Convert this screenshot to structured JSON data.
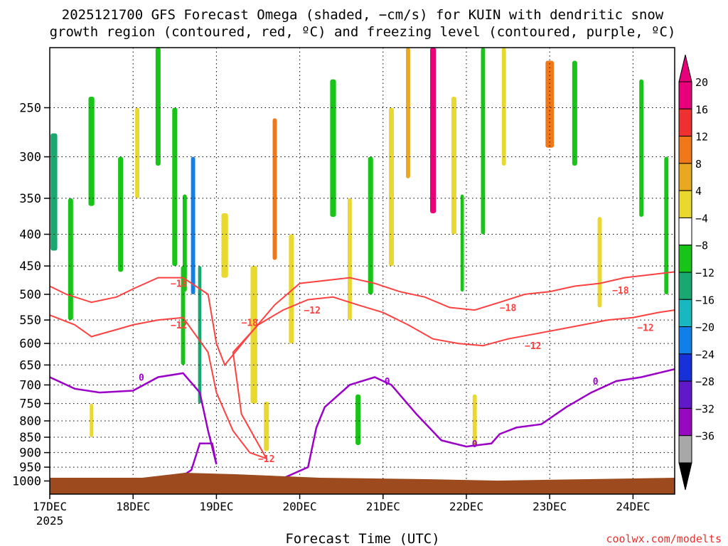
{
  "chart_data": {
    "type": "heatmap",
    "title_line1": "2025121700 GFS Forecast Omega (shaded, −cm/s) for KUIN with dendritic snow",
    "title_line2": "growth region (contoured, red, ºC) and freezing level (contoured, purple, ºC)",
    "xlabel": "Forecast Time (UTC)",
    "credit": "coolwx.com/modelts",
    "y_axis": {
      "log_scale": true,
      "range": [
        200,
        1050
      ],
      "ticks": [
        250,
        300,
        350,
        400,
        450,
        500,
        550,
        600,
        650,
        700,
        750,
        800,
        850,
        900,
        950,
        1000
      ]
    },
    "x_axis": {
      "range_days": [
        0,
        7.5
      ],
      "ticks": [
        "17DEC",
        "18DEC",
        "19DEC",
        "20DEC",
        "21DEC",
        "22DEC",
        "23DEC",
        "24DEC"
      ],
      "year_label": "2025"
    },
    "grid": true,
    "colorbar": {
      "placement": "right",
      "labels": [
        "20",
        "16",
        "12",
        "8",
        "4",
        "−4",
        "−8",
        "−12",
        "−16",
        "−20",
        "−24",
        "−28",
        "−32",
        "−36"
      ],
      "colors": [
        "#e8007a",
        "#ee3030",
        "#f07818",
        "#e8a820",
        "#e8d830",
        "#ffffff",
        "#18c418",
        "#18a870",
        "#18b8c0",
        "#1080e8",
        "#1830d8",
        "#6018c8",
        "#9808c0",
        "#a8a8a8"
      ],
      "top_arrow_color": "#e8007a",
      "bottom_arrow_color": "#000000"
    },
    "contour_colors": {
      "snow_growth": "#ff4040",
      "freezing_level": "#9b00c8",
      "ground": "#9c4a1e"
    },
    "contour_labels": {
      "minus18": "−18",
      "minus12": "−12",
      "zero": "0"
    },
    "snow_growth_minus18": [
      [
        0,
        485
      ],
      [
        0.2,
        500
      ],
      [
        0.5,
        515
      ],
      [
        0.8,
        505
      ],
      [
        1.0,
        490
      ],
      [
        1.3,
        470
      ],
      [
        1.6,
        470
      ],
      [
        1.9,
        500
      ],
      [
        2.0,
        600
      ],
      [
        2.1,
        650
      ],
      [
        2.4,
        580
      ],
      [
        2.7,
        520
      ],
      [
        3.0,
        480
      ],
      [
        3.3,
        475
      ],
      [
        3.6,
        470
      ],
      [
        3.9,
        480
      ],
      [
        4.2,
        495
      ],
      [
        4.5,
        505
      ],
      [
        4.8,
        525
      ],
      [
        5.1,
        530
      ],
      [
        5.4,
        515
      ],
      [
        5.7,
        500
      ],
      [
        6.0,
        495
      ],
      [
        6.3,
        485
      ],
      [
        6.6,
        480
      ],
      [
        6.9,
        470
      ],
      [
        7.2,
        465
      ],
      [
        7.5,
        460
      ]
    ],
    "snow_growth_minus12": [
      [
        0,
        540
      ],
      [
        0.3,
        560
      ],
      [
        0.5,
        585
      ],
      [
        0.8,
        570
      ],
      [
        1.0,
        560
      ],
      [
        1.3,
        550
      ],
      [
        1.6,
        545
      ],
      [
        1.9,
        620
      ],
      [
        2.0,
        720
      ],
      [
        2.2,
        830
      ],
      [
        2.4,
        900
      ],
      [
        2.6,
        920
      ],
      [
        2.3,
        780
      ],
      [
        2.2,
        620
      ],
      [
        2.5,
        560
      ],
      [
        2.8,
        530
      ],
      [
        3.1,
        510
      ],
      [
        3.4,
        505
      ],
      [
        3.7,
        520
      ],
      [
        4.0,
        535
      ],
      [
        4.3,
        560
      ],
      [
        4.6,
        590
      ],
      [
        4.9,
        600
      ],
      [
        5.2,
        605
      ],
      [
        5.5,
        590
      ],
      [
        5.8,
        580
      ],
      [
        6.1,
        570
      ],
      [
        6.4,
        560
      ],
      [
        6.7,
        550
      ],
      [
        7.0,
        545
      ],
      [
        7.3,
        535
      ],
      [
        7.5,
        530
      ]
    ],
    "freezing_level_zero": [
      [
        0,
        680
      ],
      [
        0.3,
        710
      ],
      [
        0.6,
        720
      ],
      [
        1.0,
        715
      ],
      [
        1.3,
        680
      ],
      [
        1.6,
        670
      ],
      [
        1.8,
        720
      ],
      [
        1.9,
        830
      ],
      [
        2.0,
        940
      ],
      [
        1.95,
        870
      ],
      [
        1.8,
        870
      ],
      [
        1.7,
        960
      ],
      [
        1.6,
        980
      ]
    ],
    "freezing_level_zero_b": [
      [
        2.1,
        980
      ],
      [
        2.8,
        990
      ],
      [
        3.1,
        950
      ],
      [
        3.2,
        820
      ],
      [
        3.3,
        760
      ],
      [
        3.6,
        700
      ],
      [
        3.9,
        680
      ],
      [
        4.1,
        700
      ],
      [
        4.4,
        780
      ],
      [
        4.7,
        860
      ],
      [
        5.0,
        880
      ],
      [
        5.3,
        870
      ],
      [
        5.4,
        840
      ],
      [
        5.6,
        820
      ],
      [
        5.9,
        810
      ],
      [
        6.2,
        760
      ],
      [
        6.5,
        720
      ],
      [
        6.8,
        690
      ],
      [
        7.1,
        680
      ],
      [
        7.5,
        660
      ]
    ],
    "omega_blobs": [
      {
        "day": 0.05,
        "p": 350,
        "w": 0.08,
        "h": 150,
        "v": -12
      },
      {
        "day": 0.25,
        "p": 450,
        "w": 0.06,
        "h": 200,
        "v": -6
      },
      {
        "day": 0.5,
        "p": 300,
        "w": 0.07,
        "h": 120,
        "v": -6
      },
      {
        "day": 0.85,
        "p": 380,
        "w": 0.06,
        "h": 160,
        "v": -6
      },
      {
        "day": 1.05,
        "p": 300,
        "w": 0.05,
        "h": 100,
        "v": 5
      },
      {
        "day": 1.3,
        "p": 250,
        "w": 0.06,
        "h": 120,
        "v": -6
      },
      {
        "day": 1.5,
        "p": 350,
        "w": 0.06,
        "h": 200,
        "v": -6
      },
      {
        "day": 1.6,
        "p": 550,
        "w": 0.05,
        "h": 200,
        "v": -6
      },
      {
        "day": 1.72,
        "p": 400,
        "w": 0.05,
        "h": 200,
        "v": -20
      },
      {
        "day": 1.8,
        "p": 600,
        "w": 0.04,
        "h": 300,
        "v": -12
      },
      {
        "day": 1.62,
        "p": 420,
        "w": 0.05,
        "h": 150,
        "v": -8
      },
      {
        "day": 2.1,
        "p": 420,
        "w": 0.08,
        "h": 100,
        "v": 6
      },
      {
        "day": 2.45,
        "p": 600,
        "w": 0.08,
        "h": 300,
        "v": 6
      },
      {
        "day": 2.7,
        "p": 350,
        "w": 0.05,
        "h": 180,
        "v": 14
      },
      {
        "day": 2.9,
        "p": 500,
        "w": 0.06,
        "h": 200,
        "v": 5
      },
      {
        "day": 3.4,
        "p": 300,
        "w": 0.07,
        "h": 150,
        "v": -6
      },
      {
        "day": 3.6,
        "p": 450,
        "w": 0.05,
        "h": 200,
        "v": 5
      },
      {
        "day": 3.85,
        "p": 400,
        "w": 0.06,
        "h": 200,
        "v": -6
      },
      {
        "day": 4.1,
        "p": 350,
        "w": 0.06,
        "h": 200,
        "v": 7
      },
      {
        "day": 4.3,
        "p": 250,
        "w": 0.05,
        "h": 150,
        "v": 10
      },
      {
        "day": 4.6,
        "p": 280,
        "w": 0.07,
        "h": 180,
        "v": 20
      },
      {
        "day": 4.85,
        "p": 320,
        "w": 0.06,
        "h": 160,
        "v": 7
      },
      {
        "day": 4.95,
        "p": 420,
        "w": 0.04,
        "h": 150,
        "v": -6
      },
      {
        "day": 5.2,
        "p": 300,
        "w": 0.05,
        "h": 200,
        "v": -6
      },
      {
        "day": 5.45,
        "p": 250,
        "w": 0.05,
        "h": 120,
        "v": 5
      },
      {
        "day": 6.0,
        "p": 250,
        "w": 0.1,
        "h": 80,
        "v": 12
      },
      {
        "day": 6.3,
        "p": 260,
        "w": 0.06,
        "h": 100,
        "v": -6
      },
      {
        "day": 6.6,
        "p": 450,
        "w": 0.05,
        "h": 150,
        "v": 5
      },
      {
        "day": 7.1,
        "p": 300,
        "w": 0.05,
        "h": 150,
        "v": -6
      },
      {
        "day": 7.4,
        "p": 400,
        "w": 0.05,
        "h": 200,
        "v": -6
      },
      {
        "day": 3.7,
        "p": 800,
        "w": 0.06,
        "h": 150,
        "v": -6
      },
      {
        "day": 5.1,
        "p": 800,
        "w": 0.05,
        "h": 150,
        "v": 5
      },
      {
        "day": 0.5,
        "p": 800,
        "w": 0.04,
        "h": 100,
        "v": 5
      },
      {
        "day": 2.6,
        "p": 820,
        "w": 0.06,
        "h": 150,
        "v": 5
      }
    ]
  }
}
